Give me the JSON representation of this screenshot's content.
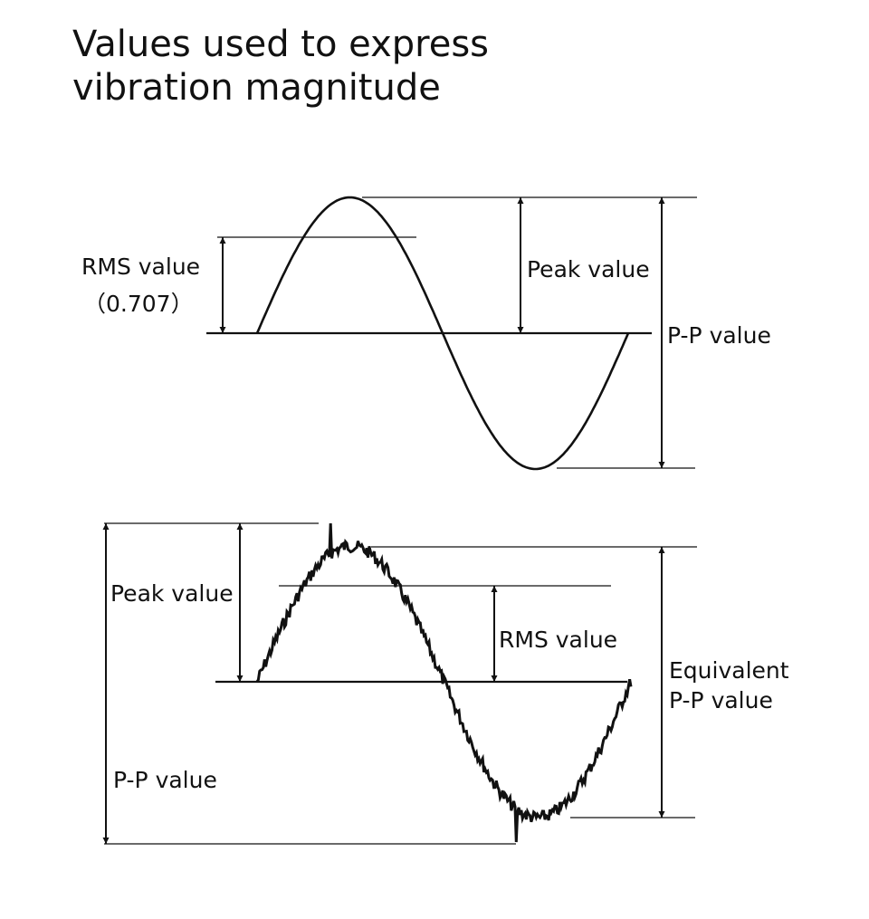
{
  "title": [
    "Values used to express",
    "vibration magnitude"
  ],
  "sine_wave": {
    "rms_label": "RMS value",
    "rms_factor": "（0.707）",
    "peak_label": "Peak value",
    "pp_label": "P-P value"
  },
  "noisy_wave": {
    "peak_label": "Peak value",
    "rms_label": "RMS value",
    "equivalent_pp_label": [
      "Equivalent",
      "P-P value"
    ],
    "pp_label": "P-P value"
  }
}
